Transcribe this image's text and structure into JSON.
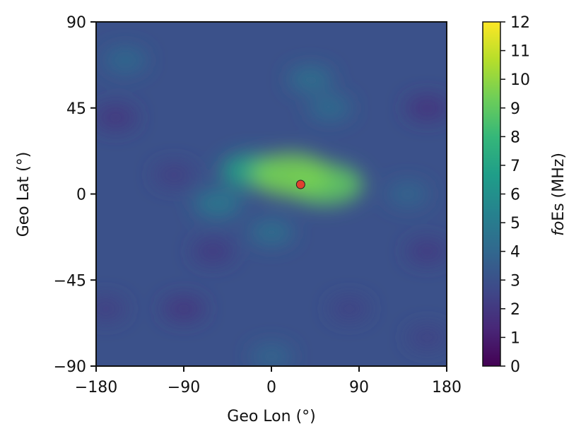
{
  "chart_data": {
    "type": "heatmap",
    "title": "",
    "xlabel": "Geo Lon (°)",
    "ylabel": "Geo Lat (°)",
    "xlim": [
      -180,
      180
    ],
    "ylim": [
      -90,
      90
    ],
    "xticks": [
      -180,
      -90,
      0,
      90,
      180
    ],
    "xtick_labels": [
      "−180",
      "−90",
      "0",
      "90",
      "180"
    ],
    "yticks": [
      -90,
      -45,
      0,
      45,
      90
    ],
    "ytick_labels": [
      "−90",
      "−45",
      "0",
      "45",
      "90"
    ],
    "colorbar": {
      "label_italic": "fo",
      "label_rest": "Es (MHz)",
      "range": [
        0,
        12
      ],
      "ticks": [
        0,
        1,
        2,
        3,
        4,
        5,
        6,
        7,
        8,
        9,
        10,
        11,
        12
      ],
      "colormap": "viridis",
      "colors": [
        "#440154",
        "#482878",
        "#3e4989",
        "#31688e",
        "#26828e",
        "#1f9e89",
        "#35b779",
        "#6ece58",
        "#b5de2b",
        "#fde725"
      ]
    },
    "background_level": 3,
    "features": [
      {
        "lon": 20,
        "lat": 10,
        "value": 9.5
      },
      {
        "lon": 55,
        "lat": 5,
        "value": 9.0
      },
      {
        "lon": -20,
        "lat": 12,
        "value": 7.0
      },
      {
        "lon": -55,
        "lat": -5,
        "value": 5.0
      },
      {
        "lon": 0,
        "lat": -20,
        "value": 4.5
      },
      {
        "lon": -150,
        "lat": 70,
        "value": 4.2
      },
      {
        "lon": 40,
        "lat": 60,
        "value": 4.5
      },
      {
        "lon": 60,
        "lat": 45,
        "value": 4.3
      },
      {
        "lon": 0,
        "lat": -85,
        "value": 4.0
      },
      {
        "lon": 140,
        "lat": 0,
        "value": 4.0
      },
      {
        "lon": -160,
        "lat": 40,
        "value": 1.8
      },
      {
        "lon": 160,
        "lat": 45,
        "value": 1.7
      },
      {
        "lon": -90,
        "lat": -60,
        "value": 1.8
      },
      {
        "lon": -60,
        "lat": -30,
        "value": 2.0
      },
      {
        "lon": 160,
        "lat": -30,
        "value": 2.0
      },
      {
        "lon": 80,
        "lat": -60,
        "value": 2.3
      },
      {
        "lon": -100,
        "lat": 10,
        "value": 2.2
      },
      {
        "lon": 160,
        "lat": -75,
        "value": 2.3
      },
      {
        "lon": -170,
        "lat": -60,
        "value": 2.2
      }
    ],
    "marker": {
      "lon": 30,
      "lat": 5,
      "color": "#e0412f"
    }
  }
}
